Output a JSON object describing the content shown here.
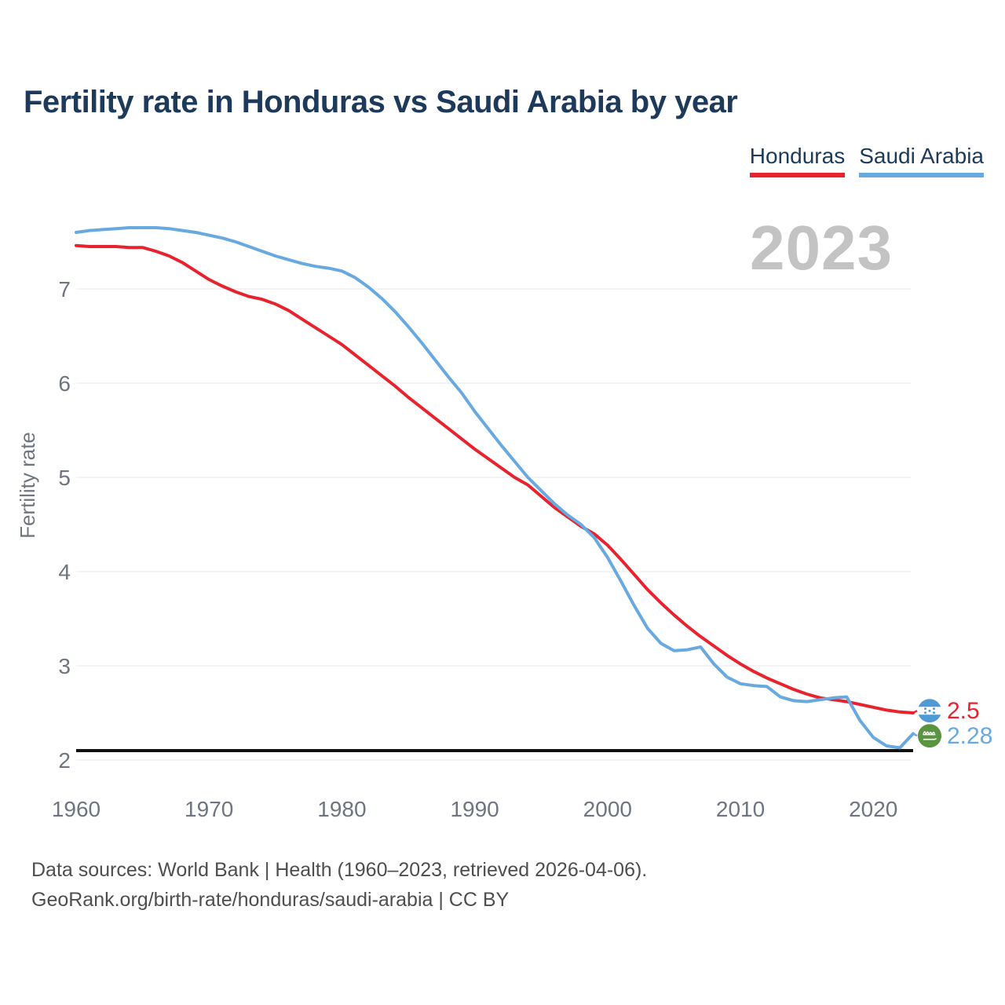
{
  "title": "Fertility rate in Honduras vs Saudi Arabia by year",
  "watermark_year": "2023",
  "legend": [
    {
      "label": "Honduras",
      "color": "#e8232e"
    },
    {
      "label": "Saudi Arabia",
      "color": "#68a9e0"
    }
  ],
  "footer": {
    "line1": "Data sources: World Bank | Health (1960–2023, retrieved 2026-04-06).",
    "line2": "GeoRank.org/birth-rate/honduras/saudi-arabia | CC BY"
  },
  "chart_data": {
    "type": "line",
    "title": "Fertility rate in Honduras vs Saudi Arabia by year",
    "xlabel": "",
    "ylabel": "Fertility rate",
    "xlim": [
      1960,
      2023
    ],
    "ylim": [
      2,
      7.8
    ],
    "x_ticks": [
      1960,
      1970,
      1980,
      1990,
      2000,
      2010,
      2020
    ],
    "y_ticks": [
      2,
      3,
      4,
      5,
      6,
      7
    ],
    "grid": "horizontal",
    "legend_position": "top-right",
    "reference_line": {
      "name": "replacement-level",
      "value": 2.1,
      "color": "#111111"
    },
    "x": [
      1960,
      1961,
      1962,
      1963,
      1964,
      1965,
      1966,
      1967,
      1968,
      1969,
      1970,
      1971,
      1972,
      1973,
      1974,
      1975,
      1976,
      1977,
      1978,
      1979,
      1980,
      1981,
      1982,
      1983,
      1984,
      1985,
      1986,
      1987,
      1988,
      1989,
      1990,
      1991,
      1992,
      1993,
      1994,
      1995,
      1996,
      1997,
      1998,
      1999,
      2000,
      2001,
      2002,
      2003,
      2004,
      2005,
      2006,
      2007,
      2008,
      2009,
      2010,
      2011,
      2012,
      2013,
      2014,
      2015,
      2016,
      2017,
      2018,
      2019,
      2020,
      2021,
      2022,
      2023
    ],
    "series": [
      {
        "name": "Honduras",
        "color": "#e8232e",
        "flag": "honduras",
        "end_label": "2.5",
        "end_value": 2.5,
        "values": [
          7.46,
          7.45,
          7.45,
          7.45,
          7.44,
          7.44,
          7.4,
          7.35,
          7.28,
          7.19,
          7.1,
          7.03,
          6.97,
          6.92,
          6.89,
          6.84,
          6.77,
          6.68,
          6.59,
          6.5,
          6.41,
          6.3,
          6.19,
          6.08,
          5.97,
          5.85,
          5.74,
          5.63,
          5.52,
          5.41,
          5.3,
          5.2,
          5.1,
          5.0,
          4.92,
          4.8,
          4.68,
          4.58,
          4.48,
          4.4,
          4.28,
          4.13,
          3.97,
          3.81,
          3.67,
          3.54,
          3.42,
          3.31,
          3.21,
          3.11,
          3.02,
          2.94,
          2.87,
          2.81,
          2.75,
          2.7,
          2.66,
          2.64,
          2.62,
          2.59,
          2.56,
          2.53,
          2.51,
          2.5
        ]
      },
      {
        "name": "Saudi Arabia",
        "color": "#68a9e0",
        "flag": "saudi-arabia",
        "end_label": "2.28",
        "end_value": 2.28,
        "values": [
          7.6,
          7.62,
          7.63,
          7.64,
          7.65,
          7.65,
          7.65,
          7.64,
          7.62,
          7.6,
          7.57,
          7.54,
          7.5,
          7.45,
          7.4,
          7.35,
          7.31,
          7.27,
          7.24,
          7.22,
          7.19,
          7.12,
          7.02,
          6.9,
          6.76,
          6.6,
          6.43,
          6.25,
          6.07,
          5.9,
          5.7,
          5.52,
          5.34,
          5.17,
          5.0,
          4.86,
          4.72,
          4.6,
          4.5,
          4.36,
          4.15,
          3.9,
          3.64,
          3.4,
          3.24,
          3.16,
          3.17,
          3.2,
          3.02,
          2.88,
          2.81,
          2.79,
          2.78,
          2.67,
          2.63,
          2.62,
          2.64,
          2.66,
          2.67,
          2.42,
          2.24,
          2.15,
          2.13,
          2.28
        ]
      }
    ]
  }
}
